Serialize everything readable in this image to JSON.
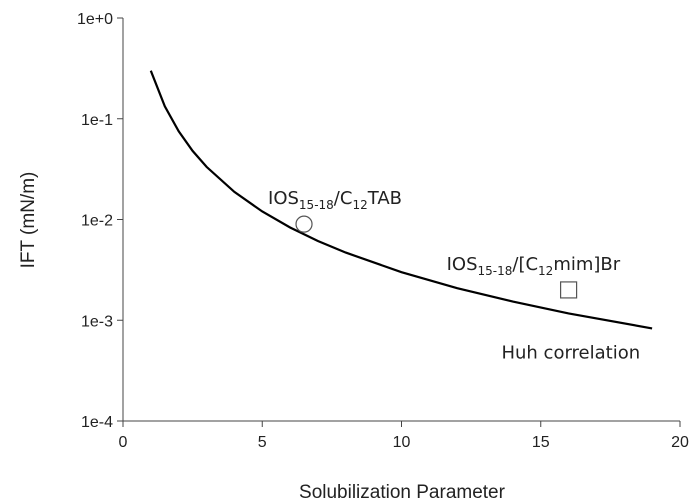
{
  "chart_data": {
    "type": "line",
    "xlabel": "Solubilization Parameter",
    "ylabel": "IFT (mN/m)",
    "xlim": [
      0,
      20
    ],
    "xticks": [
      0,
      5,
      10,
      15,
      20
    ],
    "ylim": [
      0.0001,
      1
    ],
    "yscale": "log",
    "yticks": [
      {
        "value": 0.0001,
        "label": "1e-4"
      },
      {
        "value": 0.001,
        "label": "1e-3"
      },
      {
        "value": 0.01,
        "label": "1e-2"
      },
      {
        "value": 0.1,
        "label": "1e-1"
      },
      {
        "value": 1,
        "label": "1e+0"
      }
    ],
    "series": [
      {
        "name": "Huh correlation",
        "color": "#000000",
        "x": [
          1,
          1.5,
          2,
          2.5,
          3,
          4,
          5,
          6,
          7,
          8,
          10,
          12,
          14,
          16,
          19
        ],
        "values": [
          0.3,
          0.133,
          0.075,
          0.048,
          0.0333,
          0.0188,
          0.012,
          0.00833,
          0.00612,
          0.00469,
          0.003,
          0.00208,
          0.00153,
          0.00117,
          0.00083
        ]
      }
    ],
    "points": [
      {
        "marker": "circle",
        "x": 6.5,
        "y": 0.009,
        "label_parts": [
          "IOS",
          "15-18",
          "/C",
          "12",
          "TAB"
        ]
      },
      {
        "marker": "square",
        "x": 16,
        "y": 0.002,
        "label_parts": [
          "IOS",
          "15-18",
          "/[C",
          "12",
          "mim]Br"
        ]
      }
    ]
  }
}
